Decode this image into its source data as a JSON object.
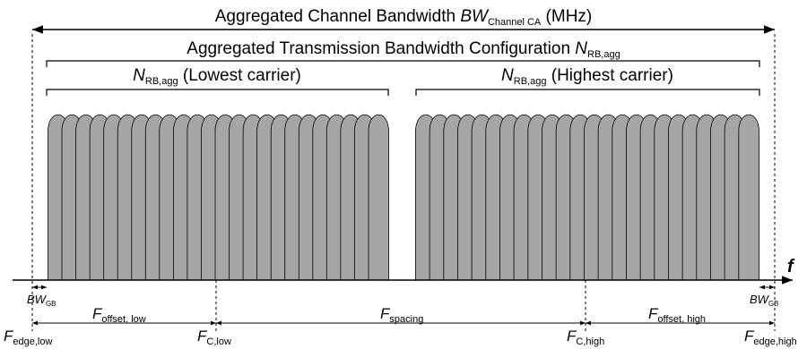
{
  "title": {
    "prefix": "Aggregated Channel Bandwidth ",
    "symbol": "BW",
    "subscript": "Channel CA",
    "suffix": " (MHz)"
  },
  "config": {
    "prefix": "Aggregated Transmission Bandwidth Configuration ",
    "symbol": "N",
    "subscript": "RB,agg"
  },
  "low_carrier": {
    "symbol": "N",
    "subscript": "RB,agg",
    "suffix": " (Lowest carrier)"
  },
  "high_carrier": {
    "symbol": "N",
    "subscript": "RB,agg",
    "suffix": " (Highest carrier)"
  },
  "freq_axis": {
    "label": "f"
  },
  "guard_band_left": {
    "symbol": "BW",
    "subscript": "GB"
  },
  "guard_band_right": {
    "symbol": "BW",
    "subscript": "GB"
  },
  "offset_low": {
    "symbol": "F",
    "subscript": "offset, low"
  },
  "spacing": {
    "symbol": "F",
    "subscript": "spacing"
  },
  "offset_high": {
    "symbol": "F",
    "subscript": "offset, high"
  },
  "edge_low": {
    "symbol": "F",
    "subscript": "edge,low"
  },
  "center_low": {
    "symbol": "F",
    "subscript": "C,low"
  },
  "center_high": {
    "symbol": "F",
    "subscript": "C,high"
  },
  "edge_high": {
    "symbol": "F",
    "subscript": "edge,high"
  },
  "colors": {
    "resource_block_fill": "#a6a6a6",
    "stroke": "#000000"
  }
}
